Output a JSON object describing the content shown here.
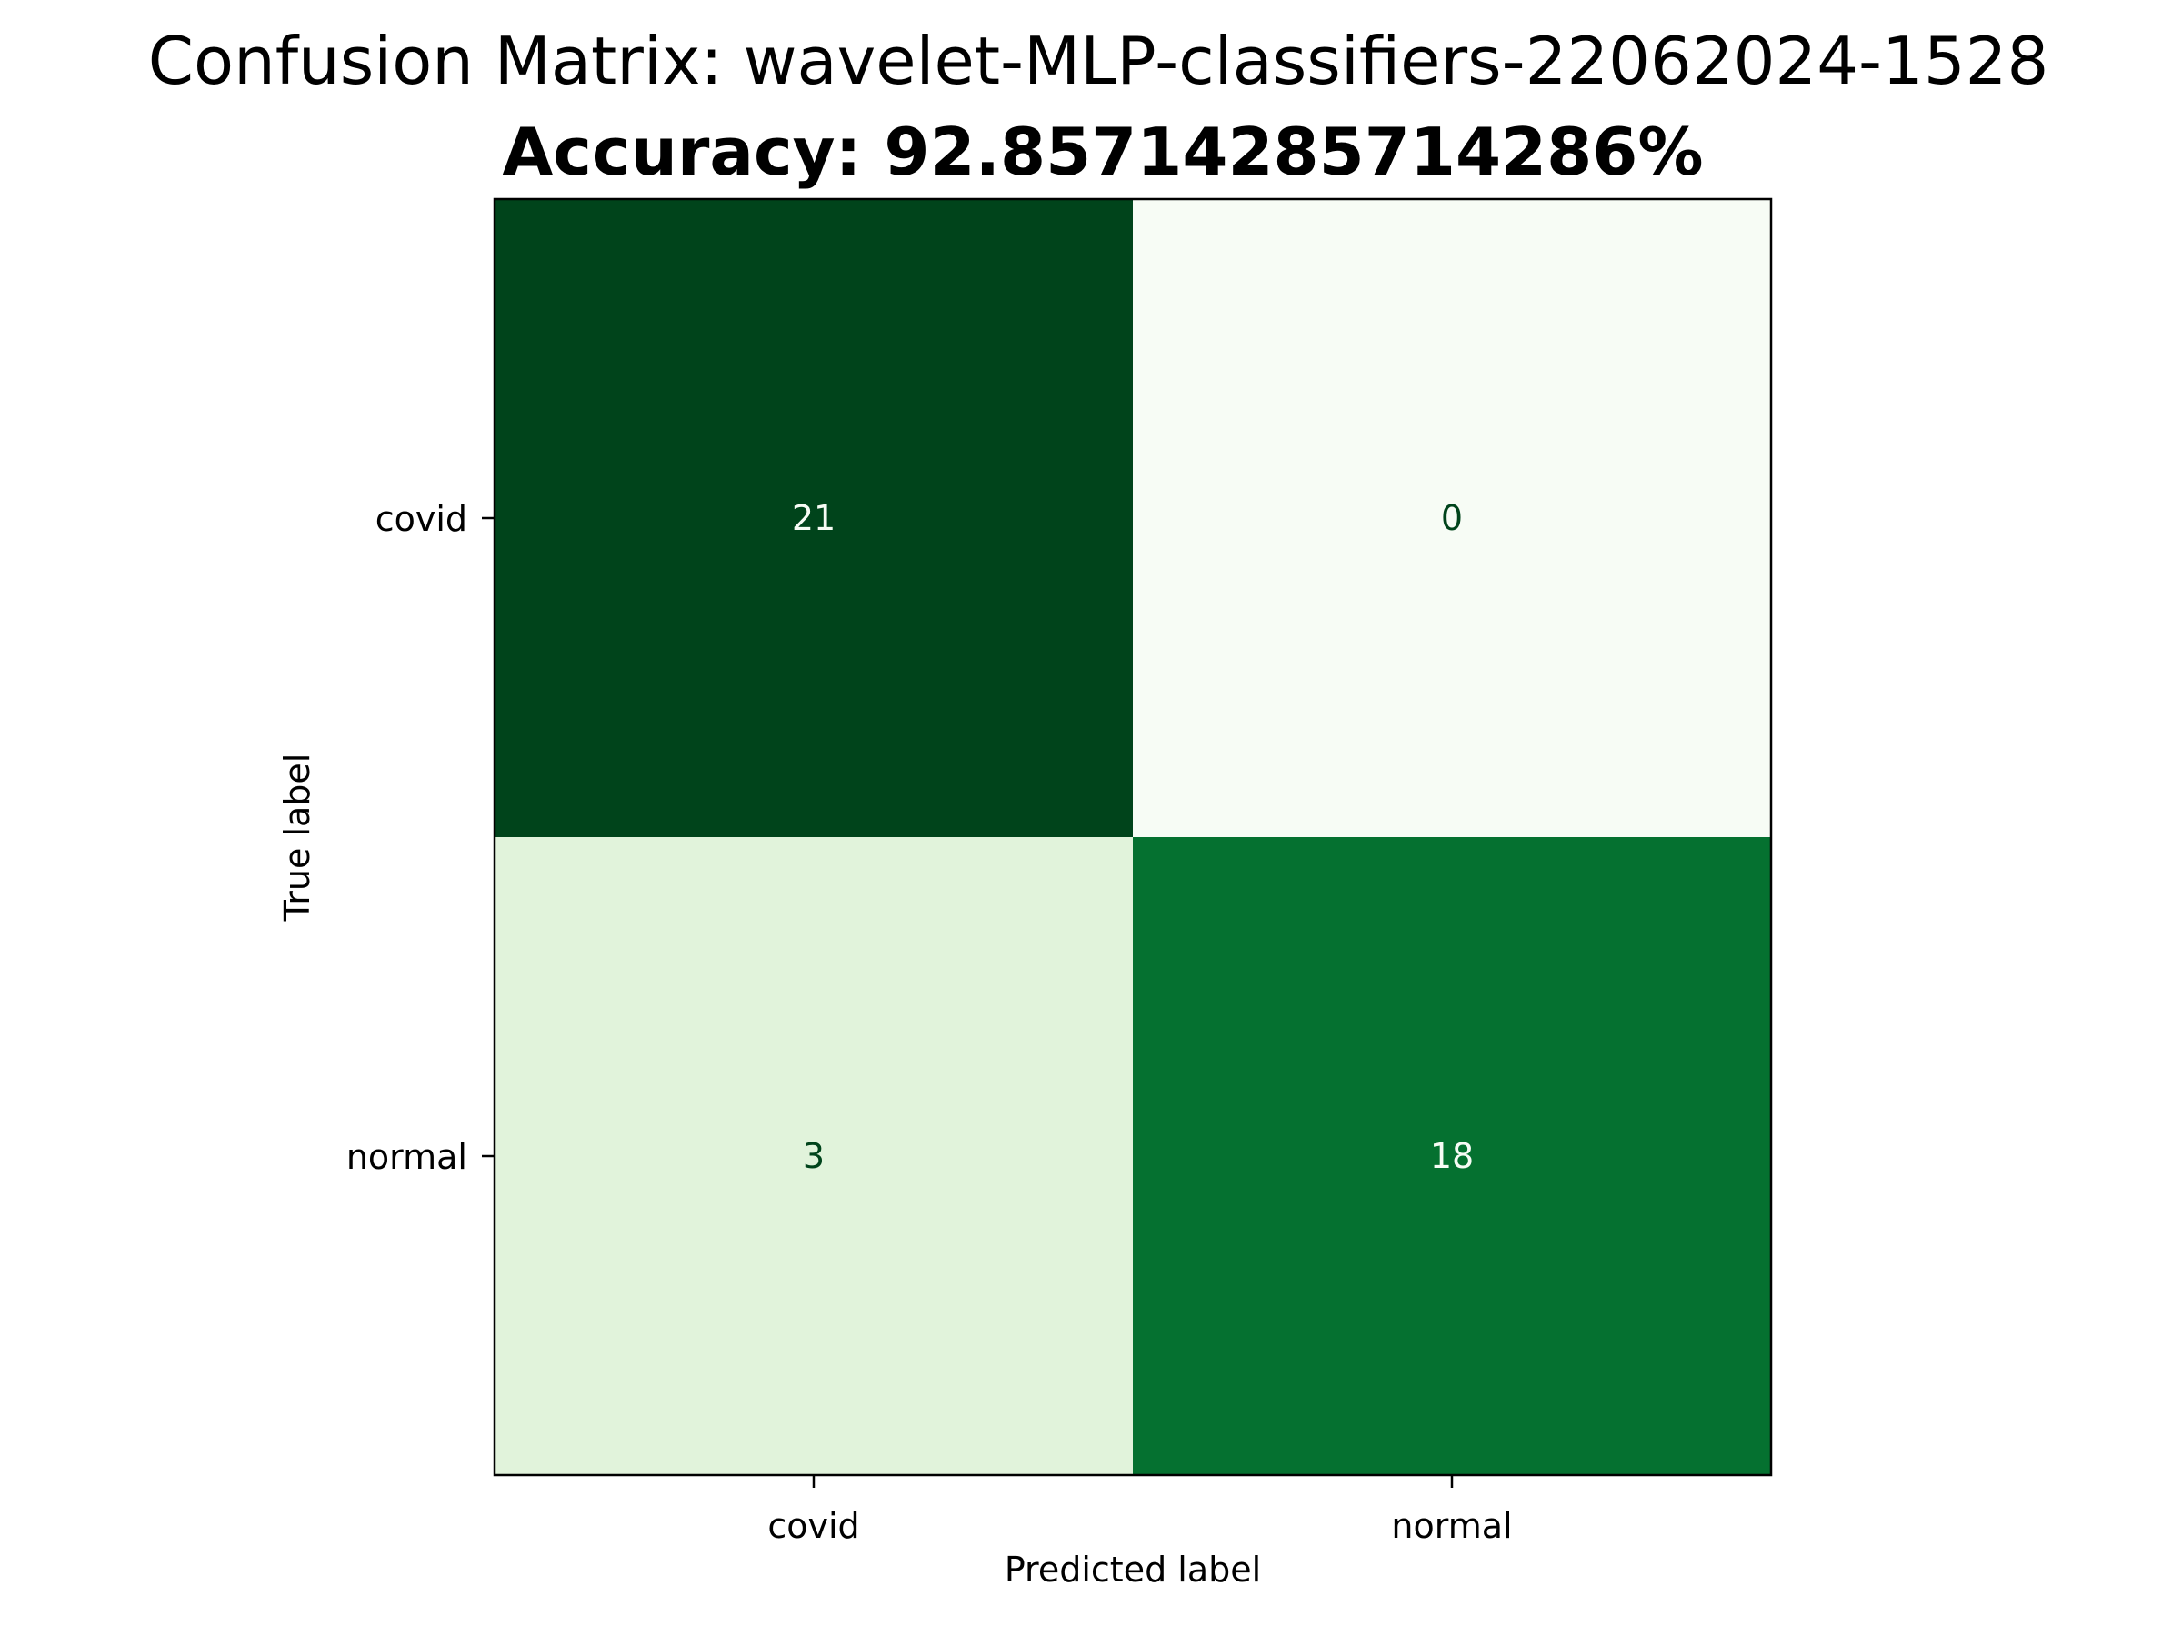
{
  "chart_data": {
    "type": "heatmap",
    "title": "Confusion Matrix: wavelet-MLP-classifiers-22062024-1528",
    "subtitle": "Accuracy: 92.857142857142​86%",
    "xlabel": "Predicted label",
    "ylabel": "True label",
    "x_categories": [
      "covid",
      "normal"
    ],
    "y_categories": [
      "covid",
      "normal"
    ],
    "values": [
      [
        21,
        0
      ],
      [
        3,
        18
      ]
    ],
    "colormap": "Greens",
    "value_range": [
      0,
      21
    ],
    "grid": false,
    "legend": "none"
  }
}
